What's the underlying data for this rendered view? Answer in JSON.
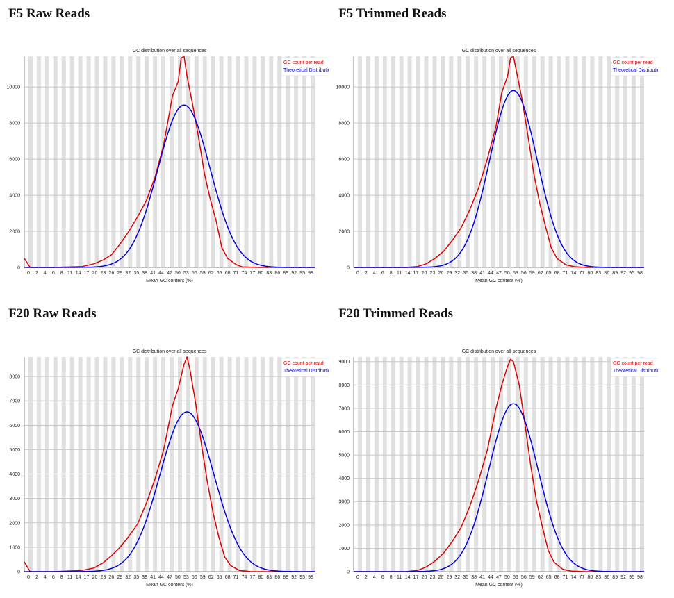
{
  "panels": [
    {
      "heading": "F5 Raw Reads"
    },
    {
      "heading": "F5 Trimmed Reads"
    },
    {
      "heading": "F20 Raw Reads"
    },
    {
      "heading": "F20 Trimmed Reads"
    }
  ],
  "colors": {
    "gc_count": "#dd0000",
    "theoretical": "#0000dd",
    "stripe": "#e0e0e0",
    "grid": "#c8c8c8",
    "axis": "#888888"
  },
  "chart_data": [
    {
      "type": "line",
      "title": "GC distribution over all sequences",
      "xlabel": "Mean GC content (%)",
      "ylabel": "",
      "x_ticks": [
        "0",
        "2",
        "4",
        "6",
        "8",
        "11",
        "14",
        "17",
        "20",
        "23",
        "26",
        "29",
        "32",
        "35",
        "38",
        "41",
        "44",
        "47",
        "50",
        "53",
        "56",
        "59",
        "62",
        "65",
        "68",
        "71",
        "74",
        "77",
        "80",
        "83",
        "86",
        "89",
        "92",
        "95",
        "98"
      ],
      "ylim": [
        0,
        11700
      ],
      "y_ticks": [
        0,
        2000,
        4000,
        6000,
        8000,
        10000
      ],
      "legend_position": "top-right",
      "series": [
        {
          "name": "GC count per read",
          "color": "#dd0000",
          "points": [
            [
              0,
              500
            ],
            [
              2,
              0
            ],
            [
              10,
              0
            ],
            [
              20,
              50
            ],
            [
              24,
              200
            ],
            [
              27,
              400
            ],
            [
              30,
              700
            ],
            [
              33,
              1300
            ],
            [
              36,
              2000
            ],
            [
              39,
              2800
            ],
            [
              42,
              3700
            ],
            [
              45,
              5000
            ],
            [
              48,
              6800
            ],
            [
              51,
              9500
            ],
            [
              53,
              10300
            ],
            [
              54,
              11600
            ],
            [
              55,
              11700
            ],
            [
              56,
              10600
            ],
            [
              58,
              9000
            ],
            [
              60,
              7200
            ],
            [
              62,
              5200
            ],
            [
              64,
              3800
            ],
            [
              66,
              2600
            ],
            [
              68,
              1100
            ],
            [
              70,
              500
            ],
            [
              73,
              150
            ],
            [
              75,
              30
            ],
            [
              80,
              0
            ],
            [
              100,
              0
            ]
          ]
        },
        {
          "name": "Theoretical Distribution",
          "color": "#0000dd",
          "gauss": {
            "mu": 55,
            "sigma": 9.0,
            "peak": 9000
          }
        }
      ]
    },
    {
      "type": "line",
      "title": "GC distribution over all sequences",
      "xlabel": "Mean GC content (%)",
      "ylabel": "",
      "x_ticks": [
        "0",
        "2",
        "4",
        "6",
        "8",
        "11",
        "14",
        "17",
        "20",
        "23",
        "26",
        "29",
        "32",
        "35",
        "38",
        "41",
        "44",
        "47",
        "50",
        "53",
        "56",
        "59",
        "62",
        "65",
        "68",
        "71",
        "74",
        "77",
        "80",
        "83",
        "86",
        "89",
        "92",
        "95",
        "98"
      ],
      "ylim": [
        0,
        11700
      ],
      "y_ticks": [
        0,
        2000,
        4000,
        6000,
        8000,
        10000
      ],
      "legend_position": "top-right",
      "series": [
        {
          "name": "GC count per read",
          "color": "#dd0000",
          "points": [
            [
              0,
              0
            ],
            [
              18,
              0
            ],
            [
              22,
              50
            ],
            [
              25,
              200
            ],
            [
              28,
              500
            ],
            [
              31,
              900
            ],
            [
              34,
              1500
            ],
            [
              37,
              2200
            ],
            [
              40,
              3200
            ],
            [
              43,
              4400
            ],
            [
              46,
              6000
            ],
            [
              49,
              7800
            ],
            [
              51,
              9700
            ],
            [
              53,
              10600
            ],
            [
              54,
              11600
            ],
            [
              55,
              11700
            ],
            [
              56,
              10900
            ],
            [
              58,
              9300
            ],
            [
              60,
              7300
            ],
            [
              62,
              5200
            ],
            [
              64,
              3600
            ],
            [
              66,
              2300
            ],
            [
              68,
              1100
            ],
            [
              70,
              500
            ],
            [
              73,
              150
            ],
            [
              76,
              40
            ],
            [
              80,
              0
            ],
            [
              100,
              0
            ]
          ]
        },
        {
          "name": "Theoretical Distribution",
          "color": "#0000dd",
          "gauss": {
            "mu": 55,
            "sigma": 8.2,
            "peak": 9800
          }
        }
      ]
    },
    {
      "type": "line",
      "title": "GC distribution over all sequences",
      "xlabel": "Mean GC content (%)",
      "ylabel": "",
      "x_ticks": [
        "0",
        "2",
        "4",
        "6",
        "8",
        "11",
        "14",
        "17",
        "20",
        "23",
        "26",
        "29",
        "32",
        "35",
        "38",
        "41",
        "44",
        "47",
        "50",
        "53",
        "56",
        "59",
        "62",
        "65",
        "68",
        "71",
        "74",
        "77",
        "80",
        "83",
        "86",
        "89",
        "92",
        "95",
        "98"
      ],
      "ylim": [
        0,
        8800
      ],
      "y_ticks": [
        0,
        1000,
        2000,
        3000,
        4000,
        5000,
        6000,
        7000,
        8000
      ],
      "legend_position": "top-right",
      "series": [
        {
          "name": "GC count per read",
          "color": "#dd0000",
          "points": [
            [
              0,
              400
            ],
            [
              2,
              0
            ],
            [
              10,
              0
            ],
            [
              20,
              50
            ],
            [
              24,
              150
            ],
            [
              27,
              350
            ],
            [
              30,
              650
            ],
            [
              33,
              1000
            ],
            [
              36,
              1450
            ],
            [
              39,
              1950
            ],
            [
              42,
              2800
            ],
            [
              45,
              3800
            ],
            [
              48,
              5000
            ],
            [
              51,
              6800
            ],
            [
              53,
              7500
            ],
            [
              55,
              8500
            ],
            [
              56,
              8800
            ],
            [
              57,
              8300
            ],
            [
              59,
              6900
            ],
            [
              61,
              5200
            ],
            [
              63,
              3700
            ],
            [
              65,
              2400
            ],
            [
              67,
              1400
            ],
            [
              69,
              600
            ],
            [
              71,
              250
            ],
            [
              74,
              50
            ],
            [
              78,
              0
            ],
            [
              100,
              0
            ]
          ]
        },
        {
          "name": "Theoretical Distribution",
          "color": "#0000dd",
          "gauss": {
            "mu": 56,
            "sigma": 9.3,
            "peak": 6550
          }
        }
      ]
    },
    {
      "type": "line",
      "title": "GC distribution over all sequences",
      "xlabel": "Mean GC content (%)",
      "ylabel": "",
      "x_ticks": [
        "0",
        "2",
        "4",
        "6",
        "8",
        "11",
        "14",
        "17",
        "20",
        "23",
        "26",
        "29",
        "32",
        "35",
        "38",
        "41",
        "44",
        "47",
        "50",
        "53",
        "56",
        "59",
        "62",
        "65",
        "68",
        "71",
        "74",
        "77",
        "80",
        "83",
        "86",
        "89",
        "92",
        "95",
        "98"
      ],
      "ylim": [
        0,
        9200
      ],
      "y_ticks": [
        0,
        1000,
        2000,
        3000,
        4000,
        5000,
        6000,
        7000,
        8000,
        9000
      ],
      "legend_position": "top-right",
      "series": [
        {
          "name": "GC count per read",
          "color": "#dd0000",
          "points": [
            [
              0,
              0
            ],
            [
              18,
              0
            ],
            [
              22,
              50
            ],
            [
              25,
              200
            ],
            [
              28,
              450
            ],
            [
              31,
              800
            ],
            [
              34,
              1300
            ],
            [
              37,
              1900
            ],
            [
              40,
              2800
            ],
            [
              43,
              3900
            ],
            [
              46,
              5200
            ],
            [
              49,
              7000
            ],
            [
              51,
              8000
            ],
            [
              53,
              8800
            ],
            [
              54,
              9100
            ],
            [
              55,
              9000
            ],
            [
              57,
              8000
            ],
            [
              59,
              6300
            ],
            [
              61,
              4500
            ],
            [
              63,
              3000
            ],
            [
              65,
              1900
            ],
            [
              67,
              900
            ],
            [
              69,
              400
            ],
            [
              72,
              100
            ],
            [
              75,
              20
            ],
            [
              80,
              0
            ],
            [
              100,
              0
            ]
          ]
        },
        {
          "name": "Theoretical Distribution",
          "color": "#0000dd",
          "gauss": {
            "mu": 55,
            "sigma": 8.5,
            "peak": 7200
          }
        }
      ]
    }
  ]
}
